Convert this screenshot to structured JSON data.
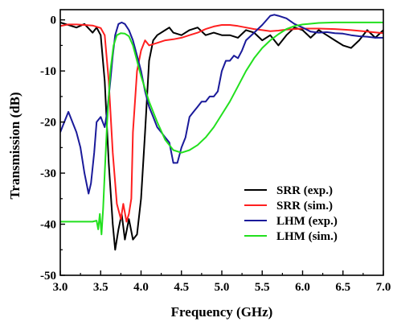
{
  "chart_data": {
    "type": "line",
    "title": "",
    "xlabel": "Frequency (GHz)",
    "ylabel": "Transmission (dB)",
    "xlim": [
      3.0,
      7.0
    ],
    "ylim": [
      -50,
      2
    ],
    "xticks": [
      "3.0",
      "3.5",
      "4.0",
      "4.5",
      "5.0",
      "5.5",
      "6.0",
      "6.5",
      "7.0"
    ],
    "yticks": [
      "0",
      "-10",
      "-20",
      "-30",
      "-40",
      "-50"
    ],
    "grid": false,
    "legend_position": "bottom-right",
    "series": [
      {
        "name": "SRR (exp.)",
        "color": "#000000",
        "points": [
          [
            3.0,
            -0.5
          ],
          [
            3.1,
            -1.0
          ],
          [
            3.2,
            -1.5
          ],
          [
            3.3,
            -0.8
          ],
          [
            3.4,
            -2.5
          ],
          [
            3.45,
            -1.5
          ],
          [
            3.5,
            -3
          ],
          [
            3.55,
            -12
          ],
          [
            3.6,
            -28
          ],
          [
            3.65,
            -40
          ],
          [
            3.68,
            -45
          ],
          [
            3.72,
            -41
          ],
          [
            3.76,
            -38
          ],
          [
            3.8,
            -43
          ],
          [
            3.85,
            -39
          ],
          [
            3.9,
            -43
          ],
          [
            3.95,
            -42
          ],
          [
            4.0,
            -35
          ],
          [
            4.05,
            -22
          ],
          [
            4.1,
            -8
          ],
          [
            4.15,
            -4
          ],
          [
            4.2,
            -3
          ],
          [
            4.3,
            -2
          ],
          [
            4.35,
            -1.5
          ],
          [
            4.4,
            -2.5
          ],
          [
            4.5,
            -3
          ],
          [
            4.6,
            -2
          ],
          [
            4.7,
            -1.5
          ],
          [
            4.8,
            -3
          ],
          [
            4.9,
            -2.5
          ],
          [
            5.0,
            -3
          ],
          [
            5.1,
            -3
          ],
          [
            5.2,
            -3.5
          ],
          [
            5.3,
            -2
          ],
          [
            5.4,
            -2.5
          ],
          [
            5.5,
            -4
          ],
          [
            5.6,
            -3
          ],
          [
            5.7,
            -5
          ],
          [
            5.8,
            -3
          ],
          [
            5.9,
            -1.5
          ],
          [
            6.0,
            -2
          ],
          [
            6.1,
            -3.5
          ],
          [
            6.2,
            -2
          ],
          [
            6.3,
            -3
          ],
          [
            6.4,
            -4
          ],
          [
            6.5,
            -5
          ],
          [
            6.6,
            -5.5
          ],
          [
            6.7,
            -4
          ],
          [
            6.8,
            -2
          ],
          [
            6.9,
            -3.5
          ],
          [
            7.0,
            -2
          ]
        ]
      },
      {
        "name": "SRR (sim.)",
        "color": "#ff2020",
        "points": [
          [
            3.0,
            -1.2
          ],
          [
            3.1,
            -0.9
          ],
          [
            3.2,
            -0.9
          ],
          [
            3.3,
            -1.0
          ],
          [
            3.4,
            -1.1
          ],
          [
            3.5,
            -1.6
          ],
          [
            3.55,
            -3
          ],
          [
            3.6,
            -12
          ],
          [
            3.65,
            -26
          ],
          [
            3.7,
            -36
          ],
          [
            3.75,
            -39
          ],
          [
            3.78,
            -36
          ],
          [
            3.82,
            -39.5
          ],
          [
            3.85,
            -38
          ],
          [
            3.88,
            -35
          ],
          [
            3.9,
            -22
          ],
          [
            3.95,
            -10
          ],
          [
            4.0,
            -6
          ],
          [
            4.05,
            -4
          ],
          [
            4.1,
            -5
          ],
          [
            4.2,
            -4.5
          ],
          [
            4.3,
            -4
          ],
          [
            4.4,
            -3.8
          ],
          [
            4.5,
            -3.5
          ],
          [
            4.6,
            -3
          ],
          [
            4.7,
            -2.5
          ],
          [
            4.8,
            -1.8
          ],
          [
            4.9,
            -1.3
          ],
          [
            5.0,
            -1.0
          ],
          [
            5.1,
            -1.0
          ],
          [
            5.2,
            -1.2
          ],
          [
            5.3,
            -1.5
          ],
          [
            5.4,
            -1.8
          ],
          [
            5.5,
            -2.0
          ],
          [
            5.6,
            -2.2
          ],
          [
            5.7,
            -2.1
          ],
          [
            5.8,
            -1.9
          ],
          [
            5.9,
            -1.8
          ],
          [
            6.0,
            -1.7
          ],
          [
            6.2,
            -1.7
          ],
          [
            6.4,
            -1.8
          ],
          [
            6.6,
            -2.0
          ],
          [
            6.8,
            -2.3
          ],
          [
            7.0,
            -2.6
          ]
        ]
      },
      {
        "name": "LHM (exp.)",
        "color": "#1a1a9a",
        "points": [
          [
            3.0,
            -22
          ],
          [
            3.05,
            -20
          ],
          [
            3.1,
            -18
          ],
          [
            3.15,
            -20
          ],
          [
            3.2,
            -22
          ],
          [
            3.25,
            -25
          ],
          [
            3.3,
            -30
          ],
          [
            3.35,
            -34
          ],
          [
            3.38,
            -32
          ],
          [
            3.42,
            -26
          ],
          [
            3.45,
            -20
          ],
          [
            3.5,
            -19
          ],
          [
            3.55,
            -21
          ],
          [
            3.58,
            -18
          ],
          [
            3.62,
            -12
          ],
          [
            3.65,
            -7
          ],
          [
            3.68,
            -3
          ],
          [
            3.72,
            -0.8
          ],
          [
            3.76,
            -0.5
          ],
          [
            3.8,
            -0.8
          ],
          [
            3.85,
            -2
          ],
          [
            3.9,
            -4
          ],
          [
            3.95,
            -7
          ],
          [
            4.0,
            -10
          ],
          [
            4.05,
            -14
          ],
          [
            4.1,
            -17
          ],
          [
            4.15,
            -19
          ],
          [
            4.2,
            -21
          ],
          [
            4.25,
            -22
          ],
          [
            4.3,
            -23
          ],
          [
            4.35,
            -24
          ],
          [
            4.4,
            -28
          ],
          [
            4.45,
            -28
          ],
          [
            4.5,
            -25
          ],
          [
            4.55,
            -23
          ],
          [
            4.6,
            -19
          ],
          [
            4.65,
            -18
          ],
          [
            4.7,
            -17
          ],
          [
            4.75,
            -16
          ],
          [
            4.8,
            -16
          ],
          [
            4.85,
            -15
          ],
          [
            4.9,
            -15
          ],
          [
            4.95,
            -14
          ],
          [
            5.0,
            -10
          ],
          [
            5.05,
            -8
          ],
          [
            5.1,
            -8
          ],
          [
            5.15,
            -7
          ],
          [
            5.2,
            -7.5
          ],
          [
            5.25,
            -6
          ],
          [
            5.3,
            -4
          ],
          [
            5.4,
            -2.5
          ],
          [
            5.5,
            -1
          ],
          [
            5.6,
            0.8
          ],
          [
            5.65,
            1.0
          ],
          [
            5.7,
            0.8
          ],
          [
            5.8,
            0.3
          ],
          [
            5.9,
            -0.8
          ],
          [
            6.0,
            -1.5
          ],
          [
            6.1,
            -2.3
          ],
          [
            6.2,
            -2.5
          ],
          [
            6.3,
            -2.4
          ],
          [
            6.4,
            -2.6
          ],
          [
            6.5,
            -2.7
          ],
          [
            6.6,
            -3
          ],
          [
            6.7,
            -3.2
          ],
          [
            6.8,
            -3.3
          ],
          [
            6.9,
            -3.5
          ],
          [
            7.0,
            -3.5
          ]
        ]
      },
      {
        "name": "LHM (sim.)",
        "color": "#22e01e",
        "points": [
          [
            3.0,
            -39.5
          ],
          [
            3.1,
            -39.5
          ],
          [
            3.2,
            -39.5
          ],
          [
            3.3,
            -39.5
          ],
          [
            3.4,
            -39.5
          ],
          [
            3.45,
            -39.3
          ],
          [
            3.47,
            -41
          ],
          [
            3.49,
            -38
          ],
          [
            3.51,
            -42
          ],
          [
            3.53,
            -37
          ],
          [
            3.55,
            -30
          ],
          [
            3.58,
            -20
          ],
          [
            3.62,
            -10
          ],
          [
            3.66,
            -5
          ],
          [
            3.7,
            -3
          ],
          [
            3.75,
            -2.6
          ],
          [
            3.8,
            -2.7
          ],
          [
            3.85,
            -3.2
          ],
          [
            3.9,
            -5
          ],
          [
            3.95,
            -8
          ],
          [
            4.0,
            -11
          ],
          [
            4.1,
            -16
          ],
          [
            4.2,
            -20
          ],
          [
            4.3,
            -23.5
          ],
          [
            4.4,
            -25.5
          ],
          [
            4.5,
            -26
          ],
          [
            4.6,
            -25.5
          ],
          [
            4.7,
            -24.5
          ],
          [
            4.8,
            -23
          ],
          [
            4.9,
            -21
          ],
          [
            5.0,
            -18.5
          ],
          [
            5.1,
            -16
          ],
          [
            5.2,
            -13
          ],
          [
            5.3,
            -10
          ],
          [
            5.4,
            -7.5
          ],
          [
            5.5,
            -5.5
          ],
          [
            5.6,
            -4
          ],
          [
            5.7,
            -2.8
          ],
          [
            5.8,
            -1.8
          ],
          [
            5.9,
            -1.2
          ],
          [
            6.0,
            -0.9
          ],
          [
            6.2,
            -0.6
          ],
          [
            6.4,
            -0.5
          ],
          [
            6.6,
            -0.5
          ],
          [
            6.8,
            -0.5
          ],
          [
            7.0,
            -0.5
          ]
        ]
      }
    ]
  }
}
